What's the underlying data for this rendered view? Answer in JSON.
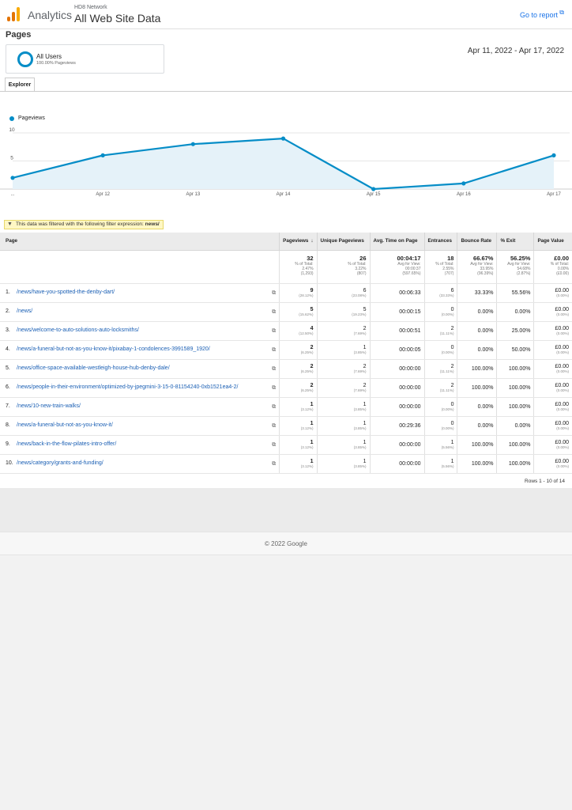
{
  "header": {
    "brand": "Analytics",
    "account": "HD8 Network",
    "property": "All Web Site Data",
    "goto_report": "Go to report",
    "goto_icon": "external-link-icon",
    "logo_colors": [
      "#f9ab00",
      "#e37400",
      "#e37400"
    ]
  },
  "page_title": "Pages",
  "segment": {
    "name": "All Users",
    "sub": "100.00% Pageviews"
  },
  "date_range": "Apr 11, 2022 - Apr 17, 2022",
  "tab": "Explorer",
  "chart_data": {
    "type": "area",
    "series": [
      {
        "name": "Pageviews",
        "values": [
          2,
          6,
          8,
          9,
          0,
          1,
          6
        ],
        "color": "#058dc7"
      }
    ],
    "x": [
      "...",
      "Apr 12",
      "Apr 13",
      "Apr 14",
      "Apr 15",
      "Apr 16",
      "Apr 17"
    ],
    "yticks": [
      5,
      10
    ],
    "ylim": [
      0,
      10
    ],
    "grid": true,
    "legend": "top-left"
  },
  "filter": {
    "text": "This data was filtered with the following filter expression:",
    "expr": "news/",
    "icon": "funnel-icon"
  },
  "table": {
    "headers": [
      "Page",
      "Pageviews",
      "Unique Pageviews",
      "Avg. Time on Page",
      "Entrances",
      "Bounce Rate",
      "% Exit",
      "Page Value"
    ],
    "sort_indicator": "↓",
    "totals": [
      {
        "main": "32",
        "sub1": "% of Total:",
        "sub2": "2.47%",
        "sub3": "(1,293)"
      },
      {
        "main": "26",
        "sub1": "% of Total:",
        "sub2": "3.22%",
        "sub3": "(807)"
      },
      {
        "main": "00:04:17",
        "sub1": "Avg for View:",
        "sub2": "00:00:37",
        "sub3": "(597.65%)"
      },
      {
        "main": "18",
        "sub1": "% of Total:",
        "sub2": "2.55%",
        "sub3": "(707)"
      },
      {
        "main": "66.67%",
        "sub1": "Avg for View:",
        "sub2": "33.95%",
        "sub3": "(96.39%)"
      },
      {
        "main": "56.25%",
        "sub1": "Avg for View:",
        "sub2": "54.68%",
        "sub3": "(2.87%)"
      },
      {
        "main": "£0.00",
        "sub1": "% of Total:",
        "sub2": "0.00%",
        "sub3": "(£0.00)"
      }
    ],
    "rows": [
      {
        "n": "1.",
        "page": "/news/have-you-spotted-the-denby-dart/",
        "pv": "9",
        "pv_pct": "(28.12%)",
        "upv": "6",
        "upv_pct": "(23.08%)",
        "time": "00:06:33",
        "ent": "6",
        "ent_pct": "(33.33%)",
        "bounce": "33.33%",
        "exit": "55.56%",
        "value": "£0.00",
        "value_pct": "(0.00%)"
      },
      {
        "n": "2.",
        "page": "/news/",
        "pv": "5",
        "pv_pct": "(15.62%)",
        "upv": "5",
        "upv_pct": "(19.23%)",
        "time": "00:00:15",
        "ent": "0",
        "ent_pct": "(0.00%)",
        "bounce": "0.00%",
        "exit": "0.00%",
        "value": "£0.00",
        "value_pct": "(0.00%)"
      },
      {
        "n": "3.",
        "page": "/news/welcome-to-auto-solutions-auto-locksmiths/",
        "pv": "4",
        "pv_pct": "(12.50%)",
        "upv": "2",
        "upv_pct": "(7.69%)",
        "time": "00:00:51",
        "ent": "2",
        "ent_pct": "(11.11%)",
        "bounce": "0.00%",
        "exit": "25.00%",
        "value": "£0.00",
        "value_pct": "(0.00%)"
      },
      {
        "n": "4.",
        "page": "/news/a-funeral-but-not-as-you-know-it/pixabay-1-condolences-3991589_1920/",
        "pv": "2",
        "pv_pct": "(6.25%)",
        "upv": "1",
        "upv_pct": "(3.85%)",
        "time": "00:00:05",
        "ent": "0",
        "ent_pct": "(0.00%)",
        "bounce": "0.00%",
        "exit": "50.00%",
        "value": "£0.00",
        "value_pct": "(0.00%)"
      },
      {
        "n": "5.",
        "page": "/news/office-space-available-westleigh-house-hub-denby-dale/",
        "pv": "2",
        "pv_pct": "(6.25%)",
        "upv": "2",
        "upv_pct": "(7.69%)",
        "time": "00:00:00",
        "ent": "2",
        "ent_pct": "(11.11%)",
        "bounce": "100.00%",
        "exit": "100.00%",
        "value": "£0.00",
        "value_pct": "(0.00%)"
      },
      {
        "n": "6.",
        "page": "/news/people-in-their-environment/optimized-by-jpegmini-3-15-0-81154240-0xb1521ea4-2/",
        "pv": "2",
        "pv_pct": "(6.25%)",
        "upv": "2",
        "upv_pct": "(7.69%)",
        "time": "00:00:00",
        "ent": "2",
        "ent_pct": "(11.11%)",
        "bounce": "100.00%",
        "exit": "100.00%",
        "value": "£0.00",
        "value_pct": "(0.00%)"
      },
      {
        "n": "7.",
        "page": "/news/10-new-train-walks/",
        "pv": "1",
        "pv_pct": "(3.12%)",
        "upv": "1",
        "upv_pct": "(3.85%)",
        "time": "00:00:00",
        "ent": "0",
        "ent_pct": "(0.00%)",
        "bounce": "0.00%",
        "exit": "100.00%",
        "value": "£0.00",
        "value_pct": "(0.00%)"
      },
      {
        "n": "8.",
        "page": "/news/a-funeral-but-not-as-you-know-it/",
        "pv": "1",
        "pv_pct": "(3.12%)",
        "upv": "1",
        "upv_pct": "(3.85%)",
        "time": "00:29:36",
        "ent": "0",
        "ent_pct": "(0.00%)",
        "bounce": "0.00%",
        "exit": "0.00%",
        "value": "£0.00",
        "value_pct": "(0.00%)"
      },
      {
        "n": "9.",
        "page": "/news/back-in-the-flow-pilates-intro-offer/",
        "pv": "1",
        "pv_pct": "(3.12%)",
        "upv": "1",
        "upv_pct": "(3.85%)",
        "time": "00:00:00",
        "ent": "1",
        "ent_pct": "(5.56%)",
        "bounce": "100.00%",
        "exit": "100.00%",
        "value": "£0.00",
        "value_pct": "(0.00%)"
      },
      {
        "n": "10.",
        "page": "/news/category/grants-and-funding/",
        "pv": "1",
        "pv_pct": "(3.12%)",
        "upv": "1",
        "upv_pct": "(3.85%)",
        "time": "00:00:00",
        "ent": "1",
        "ent_pct": "(5.56%)",
        "bounce": "100.00%",
        "exit": "100.00%",
        "value": "£0.00",
        "value_pct": "(0.00%)"
      }
    ],
    "row_icon": "open-page-icon"
  },
  "rows_info": "Rows 1 - 10 of 14",
  "footer": "© 2022 Google"
}
